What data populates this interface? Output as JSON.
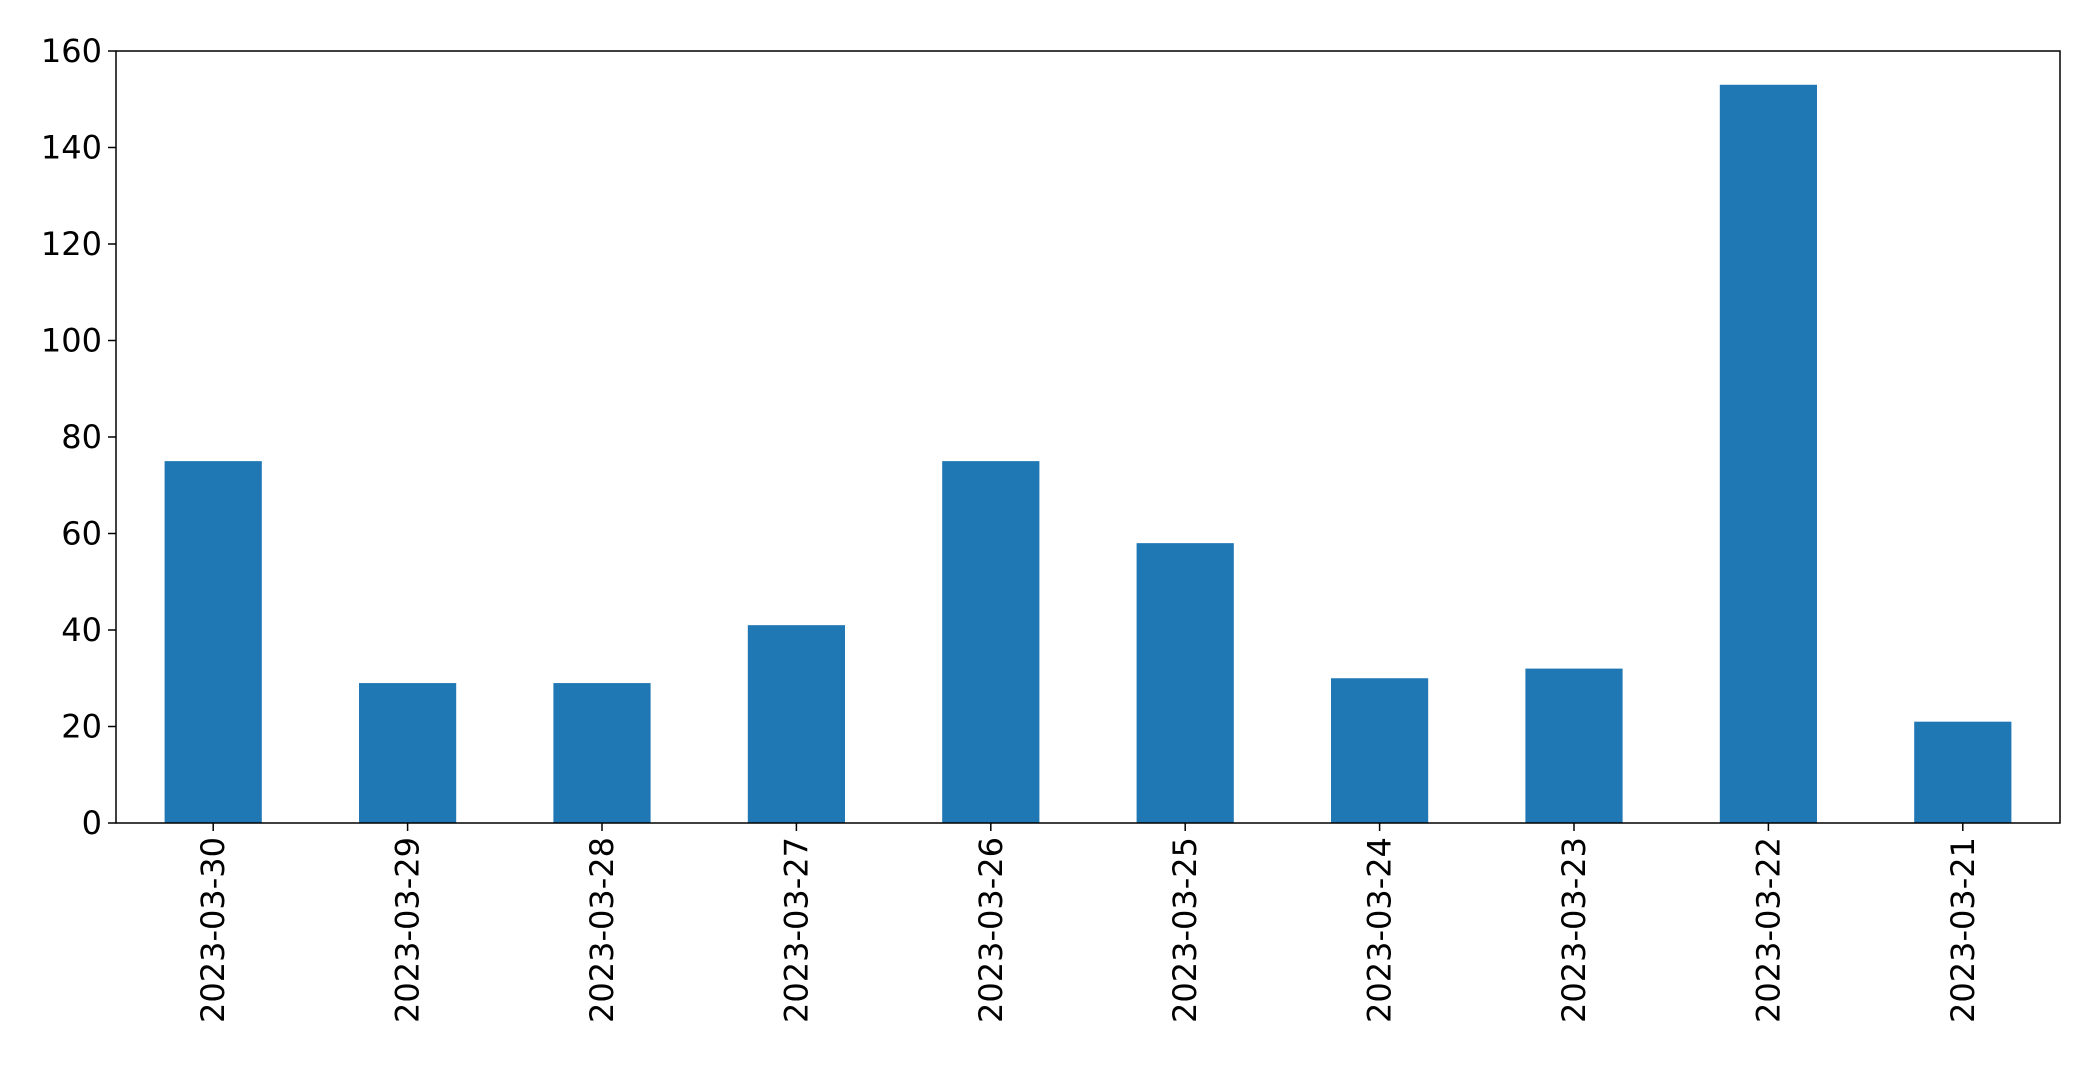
{
  "chart_data": {
    "type": "bar",
    "title": "",
    "xlabel": "",
    "ylabel": "",
    "categories": [
      "2023-03-30",
      "2023-03-29",
      "2023-03-28",
      "2023-03-27",
      "2023-03-26",
      "2023-03-25",
      "2023-03-24",
      "2023-03-23",
      "2023-03-22",
      "2023-03-21"
    ],
    "values": [
      75,
      29,
      29,
      41,
      75,
      58,
      30,
      32,
      153,
      21
    ],
    "ylim": [
      0,
      160
    ],
    "yticks": [
      0,
      20,
      40,
      60,
      80,
      100,
      120,
      140,
      160
    ],
    "bar_color": "#1f77b4",
    "grid": false,
    "legend": "none"
  }
}
